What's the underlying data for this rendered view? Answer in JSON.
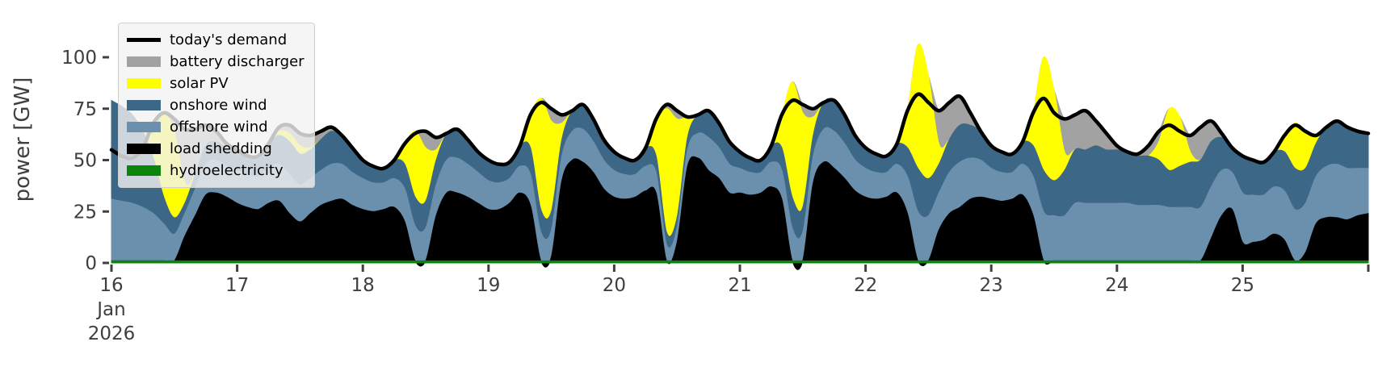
{
  "figure": {
    "background": "#ffffff",
    "text_color": "#3f3f3f"
  },
  "chart_data": {
    "type": "area",
    "stacked": true,
    "title": "",
    "xlabel": "",
    "ylabel": "power [GW]",
    "grid": false,
    "legend_position": "upper left",
    "x_axis": {
      "start": "Jan 16 2026 00:00",
      "end": "Jan 26 2026 00:00",
      "step_hours": 2,
      "hours_span": 240,
      "ticks": [
        {
          "hour": 0,
          "label": "16",
          "sublabels": [
            "Jan",
            "2026"
          ]
        },
        {
          "hour": 24,
          "label": "17",
          "sublabels": []
        },
        {
          "hour": 48,
          "label": "18",
          "sublabels": []
        },
        {
          "hour": 72,
          "label": "19",
          "sublabels": []
        },
        {
          "hour": 96,
          "label": "20",
          "sublabels": []
        },
        {
          "hour": 120,
          "label": "21",
          "sublabels": []
        },
        {
          "hour": 144,
          "label": "22",
          "sublabels": []
        },
        {
          "hour": 168,
          "label": "23",
          "sublabels": []
        },
        {
          "hour": 192,
          "label": "24",
          "sublabels": []
        },
        {
          "hour": 216,
          "label": "25",
          "sublabels": []
        },
        {
          "hour": 240,
          "label": "",
          "sublabels": []
        }
      ]
    },
    "y_axis": {
      "ticks": [
        0,
        25,
        50,
        75,
        100
      ],
      "ylim": [
        0,
        125
      ]
    },
    "legend_order_top_to_bottom": [
      "today's demand",
      "battery discharger",
      "solar PV",
      "onshore wind",
      "offshore wind",
      "load shedding",
      "hydroelectricity"
    ],
    "stack_order_bottom_to_top": [
      "hydroelectricity",
      "load shedding",
      "offshore wind",
      "onshore wind",
      "solar PV",
      "battery discharger"
    ],
    "demand_line": {
      "name": "today's demand",
      "color": "#000000",
      "width": 4.5,
      "values": [
        55,
        52,
        51,
        56,
        68,
        73,
        70,
        65,
        65,
        67,
        64,
        58,
        55,
        52,
        52,
        58,
        66,
        67,
        63,
        62,
        64,
        66,
        62,
        56,
        50,
        47,
        46,
        50,
        58,
        63,
        64,
        61,
        63,
        65,
        60,
        54,
        50,
        48,
        49,
        57,
        72,
        78,
        75,
        72,
        74,
        77,
        70,
        60,
        54,
        51,
        50,
        56,
        70,
        77,
        74,
        71,
        72,
        74,
        68,
        59,
        54,
        51,
        50,
        57,
        72,
        79,
        77,
        75,
        78,
        79,
        72,
        62,
        56,
        53,
        52,
        58,
        74,
        82,
        78,
        74,
        78,
        81,
        73,
        64,
        57,
        54,
        53,
        59,
        73,
        80,
        73,
        70,
        72,
        74,
        69,
        63,
        57,
        54,
        53,
        57,
        64,
        67,
        64,
        62,
        66,
        69,
        63,
        56,
        52,
        50,
        49,
        54,
        62,
        67,
        64,
        62,
        66,
        69,
        66,
        64,
        63
      ]
    },
    "areas": {
      "hydroelectricity": {
        "color": "#0a840a",
        "constant": 1
      },
      "load shedding": {
        "color": "#000000",
        "values": [
          0,
          0,
          0,
          0,
          0,
          0,
          0,
          12,
          22,
          32,
          33,
          31,
          28,
          26,
          25,
          28,
          29,
          23,
          19,
          23,
          27,
          29,
          30,
          27,
          25,
          24,
          25,
          26,
          19,
          0,
          0,
          22,
          33,
          33,
          31,
          28,
          25,
          25,
          28,
          33,
          27,
          0,
          2,
          39,
          49,
          48,
          43,
          35,
          31,
          30,
          31,
          34,
          33,
          0,
          9,
          46,
          50,
          44,
          40,
          33,
          33,
          32,
          33,
          36,
          30,
          0,
          0,
          38,
          48,
          45,
          40,
          34,
          31,
          30,
          31,
          33,
          23,
          0,
          0,
          15,
          23,
          26,
          30,
          31,
          30,
          29,
          30,
          32,
          22,
          0,
          0,
          0,
          0,
          0,
          0,
          0,
          0,
          0,
          0,
          0,
          0,
          0,
          0,
          0,
          0,
          11,
          22,
          25,
          9,
          9,
          10,
          13,
          10,
          0,
          4,
          18,
          21,
          21,
          20,
          22,
          23
        ]
      },
      "offshore wind": {
        "color": "#6a90ae",
        "values": [
          30,
          29,
          28,
          26,
          23,
          18,
          13,
          11,
          13,
          15,
          16,
          15,
          16,
          16,
          16,
          17,
          18,
          19,
          18,
          17,
          17,
          18,
          17,
          16,
          15,
          14,
          13,
          14,
          16,
          17,
          16,
          15,
          16,
          17,
          16,
          15,
          14,
          13,
          12,
          13,
          15,
          14,
          13,
          12,
          14,
          16,
          15,
          14,
          13,
          12,
          11,
          12,
          10,
          8,
          7,
          8,
          12,
          16,
          15,
          14,
          12,
          11,
          10,
          12,
          14,
          16,
          14,
          13,
          16,
          18,
          17,
          15,
          14,
          13,
          12,
          14,
          18,
          24,
          22,
          18,
          20,
          22,
          20,
          18,
          15,
          14,
          13,
          15,
          19,
          24,
          22,
          22,
          28,
          28,
          28,
          28,
          28,
          28,
          27,
          27,
          27,
          26,
          26,
          26,
          26,
          25,
          22,
          18,
          24,
          23,
          22,
          23,
          24,
          25,
          24,
          23,
          25,
          26,
          25,
          23,
          22
        ]
      },
      "onshore wind": {
        "color": "#3d6787",
        "values": [
          48,
          46,
          43,
          37,
          27,
          13,
          8,
          5,
          7,
          9,
          9,
          9,
          10,
          9,
          10,
          12,
          14,
          16,
          15,
          14,
          15,
          16,
          14,
          12,
          9,
          8,
          7,
          9,
          12,
          14,
          13,
          12,
          13,
          14,
          12,
          10,
          10,
          9,
          8,
          10,
          13,
          11,
          9,
          8,
          10,
          12,
          11,
          10,
          9,
          8,
          7,
          9,
          8,
          6,
          5,
          6,
          9,
          13,
          12,
          11,
          8,
          7,
          6,
          8,
          11,
          15,
          12,
          10,
          13,
          15,
          14,
          12,
          10,
          9,
          8,
          10,
          14,
          21,
          18,
          14,
          16,
          18,
          16,
          14,
          11,
          10,
          9,
          11,
          15,
          20,
          17,
          22,
          26,
          26,
          28,
          26,
          26,
          25,
          24,
          24,
          22,
          18,
          20,
          22,
          23,
          22,
          16,
          12,
          18,
          17,
          16,
          17,
          19,
          20,
          17,
          16,
          19,
          21,
          20,
          18,
          17
        ]
      },
      "solar PV": {
        "color": "#ffff00",
        "values": [
          0,
          0,
          0,
          0,
          12,
          40,
          42,
          10,
          0,
          0,
          0,
          0,
          0,
          0,
          0,
          0,
          2,
          4,
          4,
          1,
          0,
          0,
          0,
          0,
          0,
          0,
          0,
          0,
          10,
          32,
          26,
          5,
          0,
          0,
          0,
          0,
          0,
          0,
          0,
          0,
          16,
          54,
          44,
          8,
          0,
          0,
          0,
          0,
          0,
          0,
          0,
          0,
          18,
          60,
          48,
          10,
          0,
          0,
          0,
          0,
          0,
          0,
          0,
          0,
          16,
          56,
          46,
          9,
          0,
          0,
          0,
          0,
          0,
          0,
          0,
          0,
          18,
          60,
          50,
          10,
          0,
          0,
          0,
          0,
          0,
          0,
          0,
          0,
          16,
          55,
          44,
          9,
          0,
          0,
          0,
          0,
          0,
          0,
          0,
          0,
          9,
          30,
          24,
          5,
          0,
          0,
          0,
          0,
          0,
          0,
          0,
          0,
          8,
          22,
          18,
          4,
          0,
          0,
          0,
          0,
          0
        ]
      },
      "battery discharger": {
        "color": "#a2a2a2",
        "values": [
          0,
          0,
          0,
          0,
          5,
          1,
          6,
          26,
          22,
          10,
          5,
          2,
          0,
          0,
          0,
          0,
          2,
          4,
          6,
          6,
          4,
          2,
          0,
          0,
          0,
          0,
          0,
          0,
          0,
          0,
          8,
          6,
          0,
          0,
          0,
          0,
          0,
          0,
          0,
          0,
          0,
          0,
          6,
          4,
          0,
          0,
          0,
          0,
          0,
          0,
          0,
          0,
          0,
          2,
          4,
          0,
          0,
          0,
          0,
          0,
          0,
          0,
          0,
          0,
          0,
          0,
          4,
          4,
          0,
          0,
          0,
          0,
          0,
          0,
          0,
          0,
          0,
          0,
          0,
          16,
          18,
          14,
          6,
          0,
          0,
          0,
          0,
          0,
          0,
          0,
          0,
          16,
          17,
          19,
          12,
          8,
          2,
          0,
          1,
          5,
          5,
          0,
          0,
          8,
          16,
          10,
          2,
          0,
          0,
          0,
          0,
          0,
          0,
          0,
          0,
          0,
          0,
          0,
          0,
          0,
          0
        ]
      }
    }
  }
}
